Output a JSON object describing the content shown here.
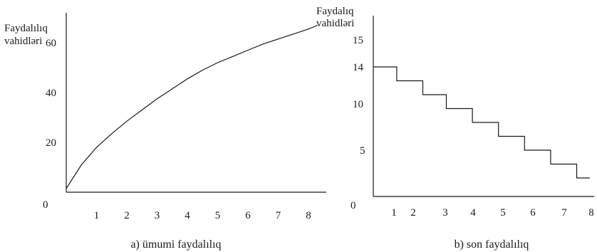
{
  "chart_data": [
    {
      "type": "line",
      "ylabel_line1": "Faydalılıq",
      "ylabel_line2": "vahidləri",
      "caption": "a) ümumi faydalılıq",
      "x_ticks": [
        "1",
        "2",
        "3",
        "4",
        "5",
        "6",
        "7",
        "8"
      ],
      "y_ticks": [
        "0",
        "20",
        "40",
        "60"
      ],
      "xlim": [
        0,
        8.5
      ],
      "ylim": [
        0,
        70
      ],
      "x": [
        0,
        0.5,
        1,
        1.5,
        2,
        2.5,
        3,
        3.5,
        4,
        4.5,
        5,
        5.5,
        6,
        6.5,
        7,
        7.5,
        8,
        8.3
      ],
      "y": [
        1.5,
        11,
        18,
        23.5,
        28.5,
        33,
        37.5,
        41.5,
        45.5,
        49,
        52,
        54.5,
        57,
        59.5,
        61.5,
        63.5,
        65.5,
        67
      ]
    },
    {
      "type": "line",
      "step": true,
      "ylabel_line1": "Faydalıq",
      "ylabel_line2": "vahidləri",
      "caption": "b) son faydalılıq",
      "x_ticks": [
        "1",
        "2",
        "3",
        "4",
        "5",
        "6",
        "7",
        "8"
      ],
      "y_ticks": [
        "0",
        "5",
        "10",
        "14",
        "15"
      ],
      "xlim": [
        0,
        8.3
      ],
      "ylim": [
        0,
        15
      ],
      "steps": [
        {
          "x0": 0,
          "x1": 0.9,
          "y": 14
        },
        {
          "x0": 0.9,
          "x1": 1.9,
          "y": 12.5
        },
        {
          "x0": 1.9,
          "x1": 2.8,
          "y": 11
        },
        {
          "x0": 2.8,
          "x1": 3.8,
          "y": 9.5
        },
        {
          "x0": 3.8,
          "x1": 4.8,
          "y": 8
        },
        {
          "x0": 4.8,
          "x1": 5.8,
          "y": 6.5
        },
        {
          "x0": 5.8,
          "x1": 6.8,
          "y": 5
        },
        {
          "x0": 6.8,
          "x1": 7.8,
          "y": 3.5
        },
        {
          "x0": 7.8,
          "x1": 8.3,
          "y": 2
        }
      ]
    }
  ]
}
